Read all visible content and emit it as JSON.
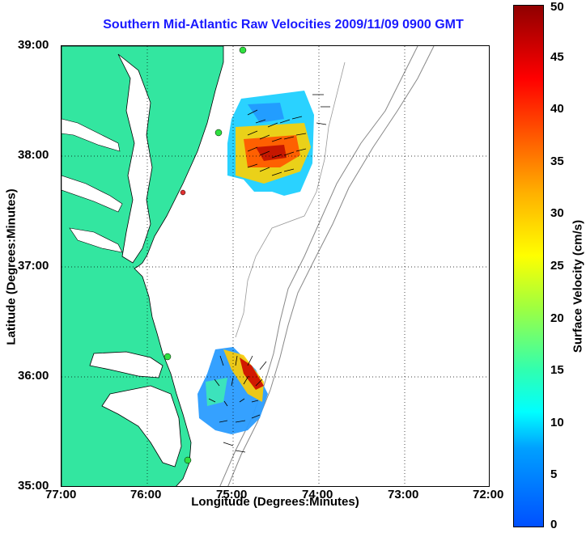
{
  "title": "Southern Mid-Atlantic Raw Velocities 2009/11/09 0900 GMT",
  "xlabel": "Longitude (Degrees:Minutes)",
  "ylabel": "Latitude (Degrees:Minutes)",
  "colorbar": {
    "label": "Surface Velocity (cm/s)",
    "min": 0,
    "max": 50,
    "ticks": [
      "0",
      "5",
      "10",
      "15",
      "20",
      "25",
      "30",
      "35",
      "40",
      "45",
      "50"
    ]
  },
  "axes": {
    "x_ticks": [
      "77:00",
      "76:00",
      "75:00",
      "74:00",
      "73:00",
      "72:00"
    ],
    "y_ticks": [
      "39:00",
      "38:00",
      "37:00",
      "36:00",
      "35:00"
    ],
    "lon_range": [
      -77,
      -72
    ],
    "lat_range": [
      35,
      39
    ]
  },
  "colors": {
    "land": "#33e6a0",
    "title": "#1a1aff"
  }
}
